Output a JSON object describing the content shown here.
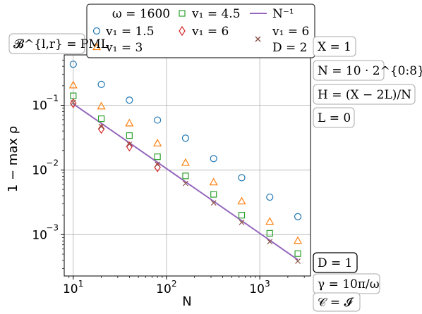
{
  "chart_data": {
    "type": "scatter",
    "xscale": "log",
    "yscale": "log",
    "xlim": [
      8,
      3500
    ],
    "ylim": [
      0.00023,
      0.6
    ],
    "grid": true,
    "xlabel": "N",
    "ylabel": "1 − max ρ",
    "x_ticks": [
      10,
      100,
      1000
    ],
    "x_tick_labels": [
      "10",
      "10",
      "10"
    ],
    "x_tick_exponents": [
      "1",
      "2",
      "3"
    ],
    "y_ticks": [
      0.001,
      0.01,
      0.1
    ],
    "y_tick_labels": [
      "10",
      "10",
      "10"
    ],
    "y_tick_exponents": [
      "−3",
      "−2",
      "−1"
    ],
    "x": [
      10,
      20,
      40,
      80,
      160,
      320,
      640,
      1280,
      2560
    ],
    "series": [
      {
        "name": "v₁ = 1.5",
        "marker": "circle",
        "color": "#1f77b4",
        "values": [
          0.43,
          0.21,
          0.12,
          0.059,
          0.031,
          0.015,
          0.0076,
          0.0038,
          0.0019
        ]
      },
      {
        "name": "v₁ = 3",
        "marker": "triangle",
        "color": "#ff7f0e",
        "values": [
          0.205,
          0.097,
          0.053,
          0.026,
          0.013,
          0.0065,
          0.0033,
          0.0016,
          0.00081
        ]
      },
      {
        "name": "v₁ = 4.5",
        "marker": "square",
        "color": "#2ca02c",
        "values": [
          0.14,
          0.062,
          0.034,
          0.016,
          0.0081,
          0.0042,
          0.002,
          0.00105,
          0.00051
        ]
      },
      {
        "name": "v₁ = 6",
        "marker": "diamond",
        "color": "#d62728",
        "values": [
          0.107,
          0.043,
          0.023,
          0.011
        ]
      },
      {
        "name": "v₁ = 6, D = 2",
        "marker": "x",
        "color": "#8c564b",
        "values": [
          0.11,
          0.047,
          0.025,
          0.0122,
          0.0062,
          0.0031,
          0.00155,
          0.00078,
          0.00039
        ]
      }
    ],
    "reference_line": {
      "name": "N⁻¹",
      "color": "#9467bd",
      "x": [
        10,
        2560
      ],
      "y": [
        0.105,
        0.00041
      ]
    },
    "legend": {
      "position": "top-center",
      "title": "ω = 1600",
      "entries": [
        "v₁ = 1.5",
        "v₁ = 3",
        "v₁ = 4.5",
        "v₁ = 6",
        "N⁻¹",
        "v₁ = 6",
        "D = 2"
      ]
    },
    "annotations": {
      "top_left": "𝓑^{l,r} = PML",
      "right_top": [
        "X = 1",
        "N = 10 · 2^{0:8}",
        "H = (X − 2L)/N",
        "L = 0"
      ],
      "right_bottom": [
        "D = 1",
        "γ = 10π/ω",
        "𝒞 = 𝓘"
      ]
    }
  }
}
